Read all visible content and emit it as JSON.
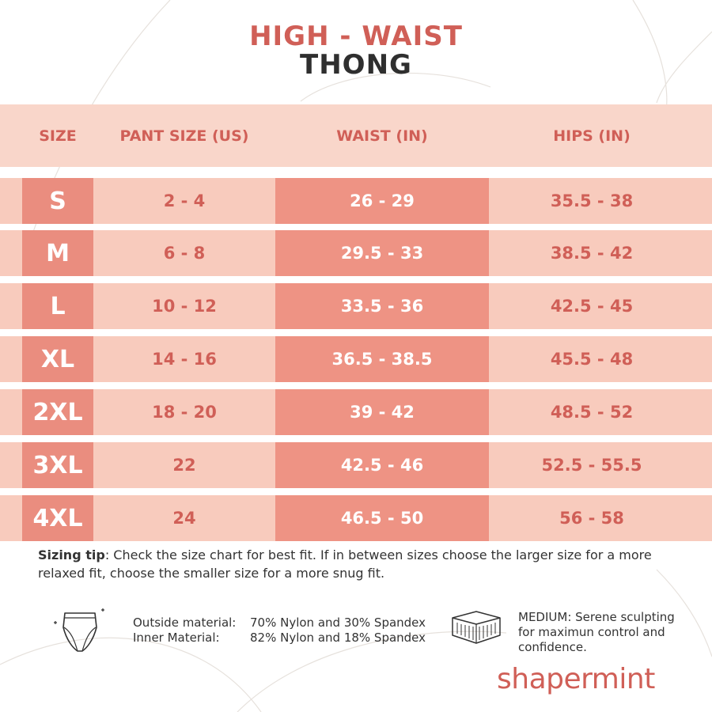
{
  "title": {
    "line1": "HIGH - WAIST",
    "line2": "THONG"
  },
  "headers": {
    "size": "SIZE",
    "pant": "PANT SIZE (US)",
    "waist": "WAIST (IN)",
    "hips": "HIPS (IN)"
  },
  "rows": [
    {
      "size": "S",
      "pant": "2 - 4",
      "waist": "26 - 29",
      "hips": "35.5 - 38"
    },
    {
      "size": "M",
      "pant": "6 - 8",
      "waist": "29.5 - 33",
      "hips": "38.5 - 42"
    },
    {
      "size": "L",
      "pant": "10 - 12",
      "waist": "33.5 - 36",
      "hips": "42.5 - 45"
    },
    {
      "size": "XL",
      "pant": "14 - 16",
      "waist": "36.5 - 38.5",
      "hips": "45.5 - 48"
    },
    {
      "size": "2XL",
      "pant": "18 - 20",
      "waist": "39 - 42",
      "hips": "48.5 - 52"
    },
    {
      "size": "3XL",
      "pant": "22",
      "waist": "42.5 - 46",
      "hips": "52.5 - 55.5"
    },
    {
      "size": "4XL",
      "pant": "24",
      "waist": "46.5 - 50",
      "hips": "56 - 58"
    }
  ],
  "tip": {
    "label": "Sizing tip",
    "text": ": Check the size chart for best fit. If in between sizes choose the larger size for a more relaxed fit, choose the smaller size for a more snug fit."
  },
  "materials": {
    "outside_label": "Outside material:",
    "outside_value": "70% Nylon and 30% Spandex",
    "inner_label": "Inner Material:",
    "inner_value": "82% Nylon and  18% Spandex"
  },
  "compression": {
    "text": "MEDIUM: Serene sculpting for maximun control and confidence."
  },
  "brand": {
    "name": "shapermint"
  },
  "colors": {
    "accent": "#d05f57",
    "band": "#f8cbbd",
    "size_cell": "#ea8d7f",
    "waist_cell": "#ee9384"
  },
  "icons": {
    "garment": "high-waist-brief-icon",
    "compression": "layered-fabric-icon"
  }
}
